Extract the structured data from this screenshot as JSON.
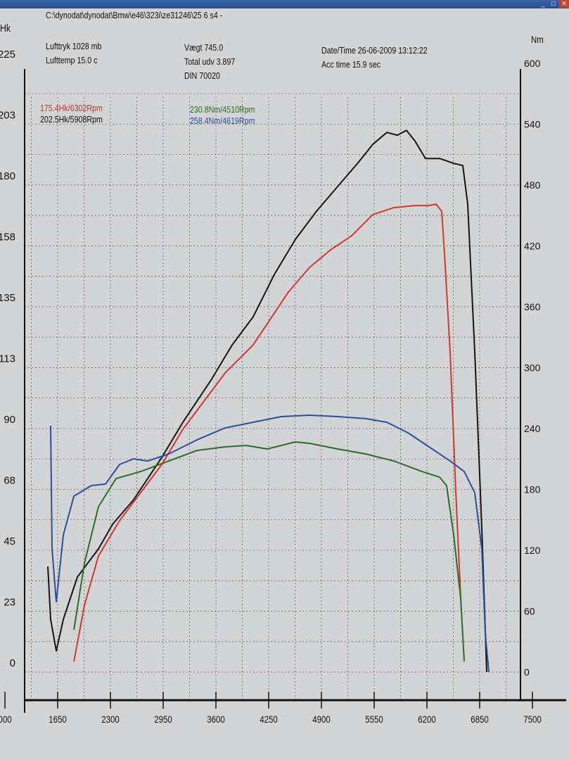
{
  "header": {
    "file_path": "C:\\dynodat\\dynodat\\Bmw\\e46\\323i\\ze31246\\25 6 s4 -",
    "lufttryk": "Lufttryk  1028 mb",
    "lufttemp": "Lufttemp  15.0 c",
    "vaegt": "Vægt    745.0",
    "total_udv": "Total udv 3.897",
    "din": "DIN 70020",
    "date_time": "Date/Time  26-06-2009 13:12:22",
    "acc_time": "Acc time  15.9 sec"
  },
  "legend": {
    "red": "175.4Hk/6302Rpm",
    "black": "202.5Hk/5908Rpm",
    "green": "230.8Nm/4510Rpm",
    "blue": "258.4Nm/4619Rpm"
  },
  "chart_data": {
    "type": "line",
    "xlabel": "",
    "ylabel_left": "Hk",
    "ylabel_right": "Nm",
    "x_ticks": [
      "000",
      "1650",
      "2300",
      "2950",
      "3600",
      "4250",
      "4900",
      "5550",
      "6200",
      "6850",
      "7500"
    ],
    "left_ticks": [
      "225",
      "203",
      "180",
      "158",
      "135",
      "113",
      "90",
      "68",
      "45",
      "23",
      "0"
    ],
    "right_ticks": [
      "600",
      "540",
      "480",
      "420",
      "360",
      "300",
      "240",
      "180",
      "120",
      "60",
      "0"
    ],
    "xlim": [
      1000,
      7500
    ],
    "ylim_right": [
      0,
      600
    ],
    "ylim_left": [
      0,
      225
    ],
    "grid": true,
    "colors": {
      "black": "#151515",
      "red": "#d0392b",
      "green": "#2f6b2a",
      "blue": "#2a4f9e"
    },
    "series": [
      {
        "key": "black",
        "axis": "Hk",
        "x": [
          1529,
          1563,
          1633,
          1720,
          1893,
          2153,
          2326,
          2586,
          2933,
          3193,
          3540,
          3800,
          4059,
          4319,
          4579,
          4839,
          5099,
          5359,
          5532,
          5706,
          5836,
          5948,
          6052,
          6182,
          6356,
          6529,
          6642,
          6703,
          6789,
          6876,
          6937
        ],
        "y": [
          39,
          19.5,
          7.8,
          19.5,
          35.1,
          45.5,
          54.6,
          63.7,
          79.3,
          92.3,
          107.9,
          120.9,
          131.3,
          146.9,
          159.9,
          170.3,
          179.4,
          188.5,
          195,
          199.4,
          198.4,
          200.2,
          196.3,
          189.8,
          189.8,
          188,
          187.2,
          172.9,
          118.3,
          53.3,
          0
        ]
      },
      {
        "key": "red",
        "axis": "Hk",
        "x": [
          1850,
          1980,
          2153,
          2413,
          2673,
          2933,
          3193,
          3453,
          3713,
          4059,
          4233,
          4493,
          4753,
          5013,
          5273,
          5532,
          5792,
          6052,
          6226,
          6312,
          6382,
          6417,
          6486,
          6556,
          6625
        ],
        "y": [
          3.9,
          24.7,
          42.9,
          55.9,
          66.3,
          76.7,
          89.7,
          100.1,
          110.5,
          120.9,
          128.7,
          140.4,
          149.5,
          156,
          161.2,
          169,
          171.6,
          172.4,
          172.4,
          172.9,
          170.3,
          154.7,
          118.3,
          66.3,
          22.1
        ]
      },
      {
        "key": "green",
        "axis": "Nm",
        "x": [
          1850,
          1980,
          2153,
          2370,
          2673,
          3020,
          3366,
          3713,
          3973,
          4233,
          4579,
          4753,
          5099,
          5446,
          5792,
          6139,
          6356,
          6442,
          6529,
          6616,
          6659
        ],
        "y": [
          41.6,
          107.5,
          163,
          190.7,
          197.6,
          208,
          218.4,
          221.9,
          223.3,
          219.8,
          226.8,
          225.4,
          219.8,
          214.9,
          208,
          197.6,
          192,
          183.8,
          135.2,
          72.8,
          10.4
        ]
      },
      {
        "key": "blue",
        "axis": "Nm",
        "x": [
          1563,
          1581,
          1633,
          1720,
          1850,
          2066,
          2239,
          2413,
          2586,
          2760,
          3020,
          3366,
          3713,
          4059,
          4406,
          4753,
          5099,
          5446,
          5706,
          5966,
          6226,
          6486,
          6659,
          6789,
          6876,
          6919,
          6963
        ],
        "y": [
          242.7,
          121.4,
          69.3,
          135.2,
          173.4,
          183.8,
          185.2,
          204.6,
          210.1,
          208,
          215,
          228.8,
          240.6,
          246.2,
          251.7,
          253.1,
          251.7,
          249.7,
          246.2,
          235.8,
          221.9,
          208,
          197.6,
          176.8,
          121.4,
          38.1,
          0
        ]
      }
    ]
  }
}
